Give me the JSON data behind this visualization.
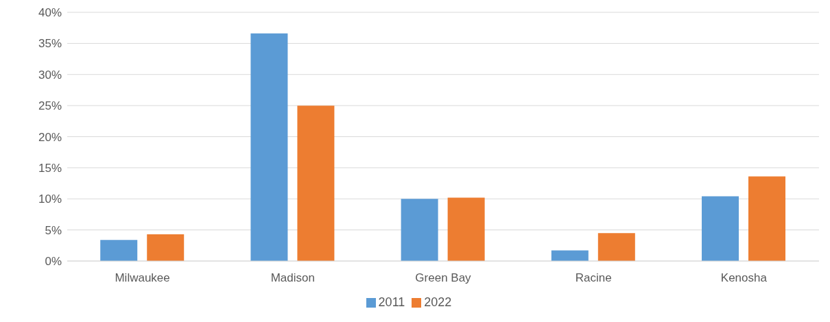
{
  "chart_data": {
    "type": "bar",
    "categories": [
      "Milwaukee",
      "Madison",
      "Green Bay",
      "Racine",
      "Kenosha"
    ],
    "series": [
      {
        "name": "2011",
        "color": "#5b9bd5",
        "values": [
          3.4,
          36.6,
          10.0,
          1.7,
          10.4
        ]
      },
      {
        "name": "2022",
        "color": "#ed7d31",
        "values": [
          4.3,
          25.0,
          10.2,
          4.5,
          13.6
        ]
      }
    ],
    "ylim": [
      0,
      40
    ],
    "yticks": [
      {
        "value": 0,
        "label": "0%"
      },
      {
        "value": 5,
        "label": "5%"
      },
      {
        "value": 10,
        "label": "10%"
      },
      {
        "value": 15,
        "label": "15%"
      },
      {
        "value": 20,
        "label": "20%"
      },
      {
        "value": 25,
        "label": "25%"
      },
      {
        "value": 30,
        "label": "30%"
      },
      {
        "value": 35,
        "label": "35%"
      },
      {
        "value": 40,
        "label": "40%"
      }
    ],
    "grid": "y",
    "legend": "bottom"
  }
}
